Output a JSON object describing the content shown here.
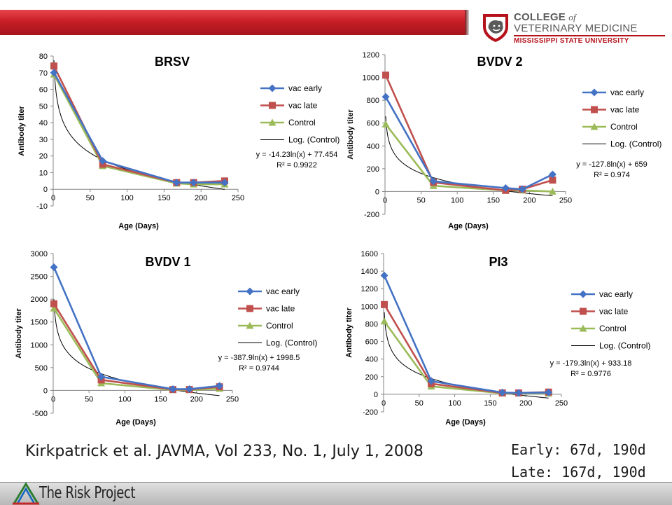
{
  "header": {
    "logo_line1": "COLLEGE",
    "logo_of": "of",
    "logo_line2": "VETERINARY MEDICINE",
    "logo_line3": "MISSISSIPPI STATE UNIVERSITY"
  },
  "citation": "Kirkpatrick et al. JAVMA, Vol 233, No. 1, July 1, 2008",
  "schedule": {
    "early": "Early: 67d, 190d",
    "late": "Late: 167d, 190d"
  },
  "footer": {
    "brand": "The Risk Project"
  },
  "colors": {
    "vac_early": "#4472c4",
    "vac_late": "#c0504d",
    "control": "#9bbb59",
    "log": "#000000"
  },
  "chart_data": [
    {
      "type": "line",
      "title": "BRSV",
      "xlabel": "Age (Days)",
      "ylabel": "Antibody titer",
      "xlim": [
        0,
        250
      ],
      "ylim": [
        -10,
        80
      ],
      "xticks": [
        0,
        50,
        100,
        150,
        200,
        250
      ],
      "yticks": [
        -10,
        0,
        10,
        20,
        30,
        40,
        50,
        60,
        70,
        80
      ],
      "series": [
        {
          "name": "vac early",
          "x": [
            1,
            67,
            167,
            190,
            232
          ],
          "y": [
            70,
            17,
            4,
            4,
            4
          ]
        },
        {
          "name": "vac late",
          "x": [
            1,
            67,
            167,
            190,
            232
          ],
          "y": [
            74,
            15,
            4,
            4,
            5
          ]
        },
        {
          "name": "Control",
          "x": [
            1,
            67,
            167,
            190,
            232
          ],
          "y": [
            69,
            14,
            3.5,
            3,
            3
          ]
        }
      ],
      "trendline": {
        "name": "Log. (Control)",
        "a": -14.23,
        "b": 77.454
      },
      "equation": "y = -14.23ln(x) + 77.454",
      "r2": "R² = 0.9922",
      "legend": "right"
    },
    {
      "type": "line",
      "title": "BVDV 2",
      "xlabel": "Age (Days)",
      "ylabel": "Antibody titer",
      "xlim": [
        0,
        250
      ],
      "ylim": [
        -200,
        1200
      ],
      "xticks": [
        0,
        50,
        100,
        150,
        200,
        250
      ],
      "yticks": [
        -200,
        0,
        200,
        400,
        600,
        800,
        1000,
        1200
      ],
      "series": [
        {
          "name": "vac early",
          "x": [
            1,
            67,
            167,
            190,
            232
          ],
          "y": [
            830,
            90,
            30,
            20,
            150
          ]
        },
        {
          "name": "vac late",
          "x": [
            1,
            67,
            167,
            190,
            232
          ],
          "y": [
            1020,
            80,
            10,
            20,
            100
          ]
        },
        {
          "name": "Control",
          "x": [
            1,
            67,
            167,
            190,
            232
          ],
          "y": [
            590,
            50,
            10,
            10,
            0
          ]
        }
      ],
      "trendline": {
        "name": "Log. (Control)",
        "a": -127.8,
        "b": 659
      },
      "equation": "y = -127.8ln(x) + 659",
      "r2": "R² = 0.974",
      "legend": "right"
    },
    {
      "type": "line",
      "title": "BVDV 1",
      "xlabel": "Age (Days)",
      "ylabel": "Antibody titer",
      "xlim": [
        0,
        250
      ],
      "ylim": [
        -500,
        3000
      ],
      "xticks": [
        0,
        50,
        100,
        150,
        200,
        250
      ],
      "yticks": [
        -500,
        0,
        500,
        1000,
        1500,
        2000,
        2500,
        3000
      ],
      "series": [
        {
          "name": "vac early",
          "x": [
            1,
            67,
            167,
            190,
            232
          ],
          "y": [
            2700,
            300,
            30,
            30,
            100
          ]
        },
        {
          "name": "vac late",
          "x": [
            1,
            67,
            167,
            190,
            232
          ],
          "y": [
            1900,
            230,
            20,
            20,
            80
          ]
        },
        {
          "name": "Control",
          "x": [
            1,
            67,
            167,
            190,
            232
          ],
          "y": [
            1800,
            160,
            10,
            10,
            40
          ]
        }
      ],
      "trendline": {
        "name": "Log. (Control)",
        "a": -387.9,
        "b": 1998.5
      },
      "equation": "y = -387.9ln(x) + 1998.5",
      "r2": "R² = 0.9744",
      "legend": "right"
    },
    {
      "type": "line",
      "title": "PI3",
      "xlabel": "Age (Days)",
      "ylabel": "Antibody titer",
      "xlim": [
        0,
        250
      ],
      "ylim": [
        -200,
        1600
      ],
      "xticks": [
        0,
        50,
        100,
        150,
        200,
        250
      ],
      "yticks": [
        -200,
        0,
        200,
        400,
        600,
        800,
        1000,
        1200,
        1400,
        1600
      ],
      "series": [
        {
          "name": "vac early",
          "x": [
            1,
            67,
            167,
            190,
            232
          ],
          "y": [
            1350,
            150,
            20,
            15,
            20
          ]
        },
        {
          "name": "vac late",
          "x": [
            1,
            67,
            167,
            190,
            232
          ],
          "y": [
            1020,
            120,
            15,
            15,
            25
          ]
        },
        {
          "name": "Control",
          "x": [
            1,
            67,
            167,
            190,
            232
          ],
          "y": [
            830,
            90,
            10,
            10,
            10
          ]
        }
      ],
      "trendline": {
        "name": "Log. (Control)",
        "a": -179.3,
        "b": 933.18
      },
      "equation": "y = -179.3ln(x) + 933.18",
      "r2": "R² = 0.9776",
      "legend": "right"
    }
  ]
}
